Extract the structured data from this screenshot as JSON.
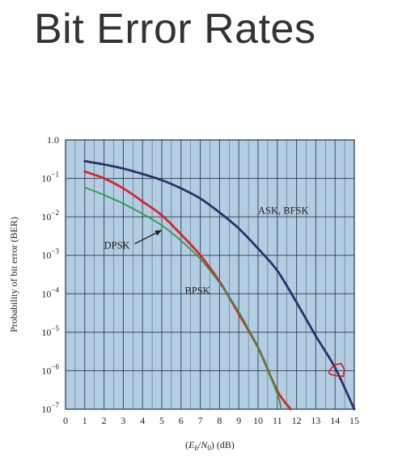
{
  "slide": {
    "title": "Bit Error Rates"
  },
  "chart_data": {
    "type": "line",
    "title": "",
    "xlabel": "(Eb/N0) (dB)",
    "ylabel": "Probability of bit error (BER)",
    "xlim": [
      0,
      15
    ],
    "ylim": [
      1e-07,
      1
    ],
    "y_scale": "log",
    "grid": true,
    "legend": "none",
    "plot_background": "#b3cde3",
    "x_ticks": [
      0,
      1,
      2,
      3,
      4,
      5,
      6,
      7,
      8,
      9,
      10,
      11,
      12,
      13,
      14,
      15
    ],
    "x_tick_labels": [
      "0",
      "1",
      "2",
      "3",
      "4",
      "5",
      "6",
      "7",
      "8",
      "9",
      "10",
      "11",
      "12",
      "13",
      "14",
      "15"
    ],
    "y_ticks": [
      1,
      0.1,
      0.01,
      0.001,
      0.0001,
      1e-05,
      1e-06,
      1e-07
    ],
    "y_tick_labels": [
      {
        "base": "1.0",
        "exp": ""
      },
      {
        "base": "10",
        "exp": "−1"
      },
      {
        "base": "10",
        "exp": "−2"
      },
      {
        "base": "10",
        "exp": "−3"
      },
      {
        "base": "10",
        "exp": "−4"
      },
      {
        "base": "10",
        "exp": "−5"
      },
      {
        "base": "10",
        "exp": "−6"
      },
      {
        "base": "10",
        "exp": "−7"
      }
    ],
    "series": [
      {
        "name": "ASK, BFSK",
        "color": "#2b2f6b",
        "x": [
          1,
          2,
          3,
          4,
          5,
          6,
          7,
          8,
          9,
          10,
          11,
          12,
          13,
          14,
          15
        ],
        "y": [
          0.28,
          0.23,
          0.18,
          0.13,
          0.09,
          0.055,
          0.03,
          0.013,
          0.005,
          0.0015,
          0.0004,
          6e-05,
          8e-06,
          1.2e-06,
          1e-07
        ]
      },
      {
        "name": "DPSK",
        "color": "#d9252a",
        "x": [
          1,
          2,
          3,
          4,
          5,
          6,
          7,
          8,
          9,
          10,
          11,
          11.7
        ],
        "y": [
          0.15,
          0.1,
          0.055,
          0.025,
          0.011,
          0.0035,
          0.001,
          0.00021,
          3e-05,
          4e-06,
          3e-07,
          1e-07
        ]
      },
      {
        "name": "BPSK",
        "color": "#2a9a4a",
        "x": [
          1,
          2,
          3,
          4,
          5,
          6,
          7,
          8,
          9,
          10,
          11,
          11.2
        ],
        "y": [
          0.058,
          0.037,
          0.022,
          0.012,
          0.006,
          0.0024,
          0.0008,
          0.00019,
          3.4e-05,
          4e-06,
          2.5e-07,
          1e-07
        ]
      }
    ],
    "annotations": [
      {
        "text": "ASK, BFSK",
        "x": 10,
        "y": 0.012
      },
      {
        "text": "DPSK",
        "x": 2,
        "y": 0.0015,
        "arrow_to": {
          "x": 5,
          "y": 0.0045
        }
      },
      {
        "text": "BPSK",
        "x": 6.2,
        "y": 0.0001
      }
    ]
  }
}
